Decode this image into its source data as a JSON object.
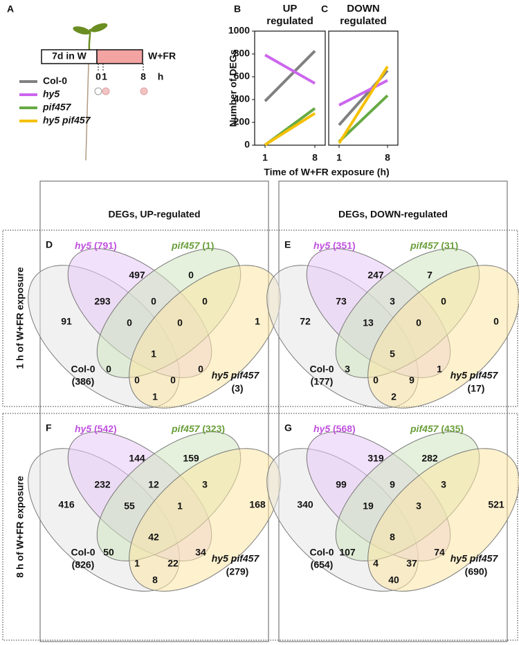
{
  "panel_a": {
    "label": "A",
    "box_text": "7d in W",
    "condition": "W+FR",
    "time_labels": [
      "0",
      "1",
      "8"
    ],
    "time_unit": "h"
  },
  "chart_data": [
    {
      "type": "line",
      "label": "B",
      "title": "UP regulated",
      "categories": [
        "1",
        "8"
      ],
      "ylabel": "Number of DEGs",
      "xlabel": "Time of W+FR exposure (h)",
      "ylim": [
        0,
        1000
      ],
      "yticks": [
        0,
        200,
        400,
        600,
        800,
        1000
      ],
      "series": [
        {
          "name": "Col-0",
          "color": "#808080",
          "values": [
            386,
            826
          ]
        },
        {
          "name": "hy5",
          "color": "#cc66ee",
          "values": [
            791,
            542
          ]
        },
        {
          "name": "pif457",
          "color": "#66aa44",
          "values": [
            1,
            323
          ]
        },
        {
          "name": "hy5 pif457",
          "color": "#f5c000",
          "values": [
            3,
            279
          ]
        }
      ]
    },
    {
      "type": "line",
      "label": "C",
      "title": "DOWN regulated",
      "categories": [
        "1",
        "8"
      ],
      "ylim": [
        0,
        1000
      ],
      "series": [
        {
          "color": "#808080",
          "values": [
            177,
            654
          ]
        },
        {
          "color": "#cc66ee",
          "values": [
            351,
            568
          ]
        },
        {
          "color": "#66aa44",
          "values": [
            31,
            435
          ]
        },
        {
          "color": "#f5c000",
          "values": [
            17,
            690
          ]
        }
      ]
    }
  ],
  "venn": {
    "columns": [
      "DEGs, UP-regulated",
      "DEGs, DOWN-regulated"
    ],
    "rows": [
      "1 h of W+FR exposure",
      "8 h of W+FR exposure"
    ],
    "panels": [
      {
        "label": "D",
        "sets": [
          {
            "name": "hy5",
            "count": "(791)"
          },
          {
            "name": "pif457",
            "count": "(1)"
          },
          {
            "name": "Col-0",
            "count": "(386)"
          },
          {
            "name": "hy5 pif457",
            "count": "(3)"
          }
        ],
        "regions": [
          91,
          497,
          0,
          1,
          293,
          0,
          0,
          0,
          0,
          1,
          0,
          0,
          0,
          0,
          1
        ]
      },
      {
        "label": "E",
        "sets": [
          {
            "name": "hy5",
            "count": "(351)"
          },
          {
            "name": "pif457",
            "count": "(31)"
          },
          {
            "name": "Col-0",
            "count": "(177)"
          },
          {
            "name": "hy5 pif457",
            "count": "(17)"
          }
        ],
        "regions": [
          72,
          247,
          7,
          0,
          73,
          3,
          0,
          13,
          0,
          5,
          3,
          1,
          0,
          9,
          2
        ]
      },
      {
        "label": "F",
        "sets": [
          {
            "name": "hy5",
            "count": "(542)"
          },
          {
            "name": "pif457",
            "count": "(323)"
          },
          {
            "name": "Col-0",
            "count": "(826)"
          },
          {
            "name": "hy5 pif457",
            "count": "(279)"
          }
        ],
        "regions": [
          416,
          144,
          159,
          168,
          232,
          12,
          3,
          55,
          1,
          42,
          50,
          34,
          1,
          22,
          8
        ]
      },
      {
        "label": "G",
        "sets": [
          {
            "name": "hy5",
            "count": "(568)"
          },
          {
            "name": "pif457",
            "count": "(435)"
          },
          {
            "name": "Col-0",
            "count": "(654)"
          },
          {
            "name": "hy5 pif457",
            "count": "(690)"
          }
        ],
        "regions": [
          340,
          319,
          282,
          521,
          99,
          9,
          3,
          19,
          3,
          8,
          107,
          74,
          4,
          37,
          40
        ]
      }
    ]
  }
}
